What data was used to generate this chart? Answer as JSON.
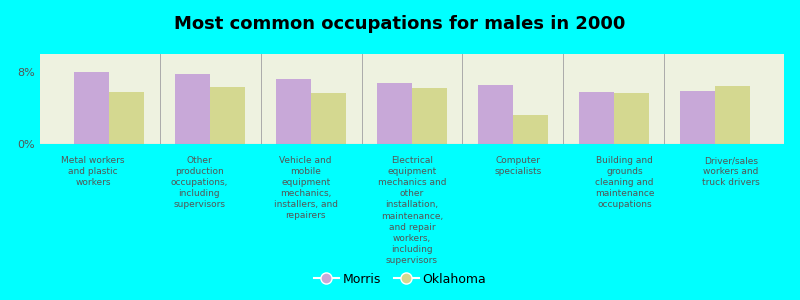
{
  "title": "Most common occupations for males in 2000",
  "categories": [
    "Metal workers\nand plastic\nworkers",
    "Other\nproduction\noccupations,\nincluding\nsupervisors",
    "Vehicle and\nmobile\nequipment\nmechanics,\ninstallers, and\nrepairers",
    "Electrical\nequipment\nmechanics and\nother\ninstallation,\nmaintenance,\nand repair\nworkers,\nincluding\nsupervisors",
    "Computer\nspecialists",
    "Building and\ngrounds\ncleaning and\nmaintenance\noccupations",
    "Driver/sales\nworkers and\ntruck drivers"
  ],
  "morris_values": [
    8.0,
    7.8,
    7.2,
    6.8,
    6.5,
    5.8,
    5.9
  ],
  "oklahoma_values": [
    5.8,
    6.3,
    5.7,
    6.2,
    3.2,
    5.7,
    6.4
  ],
  "morris_color": "#c8a8d8",
  "oklahoma_color": "#d4d890",
  "background_color": "#00ffff",
  "plot_bg_color": "#eef2e0",
  "ylim": [
    0,
    10
  ],
  "yticks": [
    0,
    8
  ],
  "ytick_labels": [
    "0%",
    "8%"
  ],
  "bar_width": 0.35,
  "legend_morris": "Morris",
  "legend_oklahoma": "Oklahoma",
  "text_color": "#555555"
}
